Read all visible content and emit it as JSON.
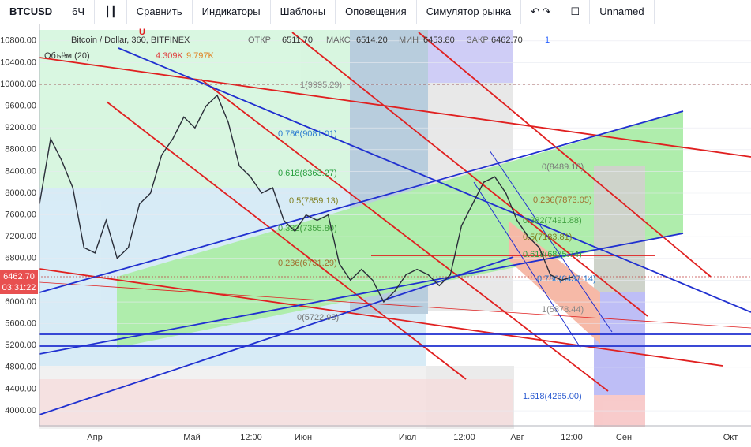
{
  "toolbar": {
    "symbol": "BTCUSD",
    "interval": "6Ч",
    "items": [
      "Сравнить",
      "Индикаторы",
      "Шаблоны",
      "Оповещения",
      "Симулятор рынка"
    ],
    "layout_name": "Unnamed"
  },
  "legend": {
    "title": "Bitcoin / Dollar, 360, BITFINEX",
    "open_label": "ОТКР",
    "open": "6511.70",
    "high_label": "МАКС",
    "high": "6514.20",
    "low_label": "МИН",
    "low": "6453.80",
    "close_label": "ЗАКР",
    "close": "6462.70",
    "alerts": "1",
    "volume_title": "Объём (20)",
    "volume_1": "4.309K",
    "volume_2": "9.797K",
    "marker": "U"
  },
  "price_tag": {
    "price": "6462.70",
    "countdown": "03:31:22"
  },
  "time_labels": [
    "Апр",
    "Май",
    "12:00",
    "Июн",
    "Июл",
    "12:00",
    "Авг",
    "12:00",
    "Сен",
    "Окт"
  ],
  "fib_labels": [
    "1(9995.29)",
    "0.786(9081.01)",
    "0.618(8363.27)",
    "0.5(7859.13)",
    "0.382(7355.80)",
    "0.236(6731.29)",
    "0(5722.98)",
    "0(8489.18)",
    "0.236(7873.05)",
    "0.382(7491.88)",
    "0.5(7183.81)",
    "0.618(6875.74)",
    "0.786(6437.14)",
    "1(5878.44)",
    "1.618(4265.00)"
  ],
  "chart_data": {
    "type": "line",
    "color": "#2a2e39",
    "values": [
      7800,
      9000,
      8600,
      8100,
      7000,
      6900,
      7500,
      6800,
      7000,
      7800,
      8000,
      8700,
      9000,
      9400,
      9200,
      9600,
      9800,
      9300,
      8500,
      8300,
      8000,
      8100,
      7500,
      7300,
      7600,
      7500,
      7600,
      6700,
      6400,
      6600,
      6400,
      6000,
      6200,
      6500,
      6600,
      6500,
      6300,
      6500,
      7400,
      7800,
      8200,
      8300,
      8000,
      7500,
      7200,
      7000,
      6500,
      6400,
      6462.7
    ],
    "ylim": [
      3725,
      11000
    ],
    "yticks": [
      {
        "value": 4000,
        "label": "4000.00"
      },
      {
        "value": 4400,
        "label": "4400.00"
      },
      {
        "value": 4800,
        "label": "4800.00"
      },
      {
        "value": 5200,
        "label": "5200.00"
      },
      {
        "value": 5600,
        "label": "5600.00"
      },
      {
        "value": 6000,
        "label": "6000.00"
      },
      {
        "value": 6400,
        "label": "6400.00"
      },
      {
        "value": 6800,
        "label": "6800.00"
      },
      {
        "value": 7200,
        "label": "7200.00"
      },
      {
        "value": 7600,
        "label": "7600.00"
      },
      {
        "value": 8000,
        "label": "8000.00"
      },
      {
        "value": 8400,
        "label": "8400.00"
      },
      {
        "value": 8800,
        "label": "8800.00"
      },
      {
        "value": 9200,
        "label": "9200.00"
      },
      {
        "value": 9600,
        "label": "9600.00"
      },
      {
        "value": 10000,
        "label": "10000.00"
      },
      {
        "value": 10400,
        "label": "10400.00"
      },
      {
        "value": 10800,
        "label": "10800.00"
      }
    ],
    "grid": true
  }
}
